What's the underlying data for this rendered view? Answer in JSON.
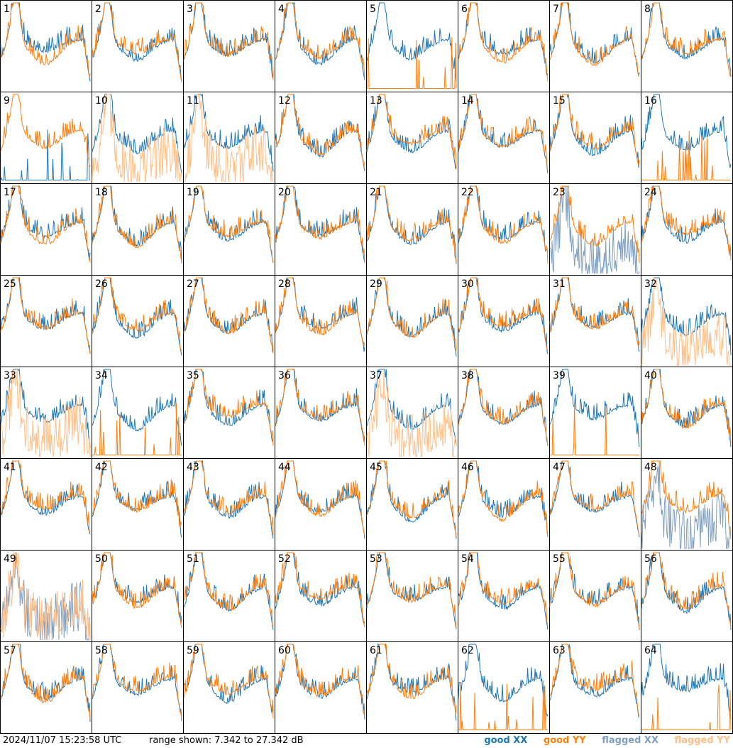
{
  "chart_data": {
    "type": "line",
    "title": "",
    "xlabel": "",
    "ylabel": "",
    "ylim": [
      7.342,
      27.342
    ],
    "panel_ids": [
      1,
      2,
      3,
      4,
      5,
      6,
      7,
      8,
      9,
      10,
      11,
      12,
      13,
      14,
      15,
      16,
      17,
      18,
      19,
      20,
      21,
      22,
      23,
      24,
      25,
      26,
      27,
      28,
      29,
      30,
      31,
      32,
      33,
      34,
      35,
      36,
      37,
      38,
      39,
      40,
      41,
      42,
      43,
      44,
      45,
      46,
      47,
      48,
      49,
      50,
      51,
      52,
      53,
      54,
      55,
      56,
      57,
      58,
      59,
      60,
      61,
      62,
      63,
      64
    ],
    "flagged_xx": [
      23,
      48,
      49
    ],
    "flagged_yy": [
      10,
      11,
      32,
      33,
      37,
      49
    ],
    "dead_xx": [
      9
    ],
    "dead_yy": [
      5,
      16,
      34,
      39,
      62,
      64
    ],
    "legend": [
      "good XX",
      "good YY",
      "flagged XX",
      "flagged YY"
    ],
    "colors": {
      "good_xx": "#1f77b4",
      "good_yy": "#ff7f0e",
      "flagged_xx": "#7f9fbf",
      "flagged_yy": "#ffbf87"
    }
  },
  "footer": {
    "timestamp": "2024/11/07 15:23:58 UTC",
    "range_text": "range shown: 7.342 to 27.342 dB"
  },
  "legend": {
    "good_xx": "good XX",
    "good_yy": "good YY",
    "flagged_xx": "flagged XX",
    "flagged_yy": "flagged YY"
  }
}
